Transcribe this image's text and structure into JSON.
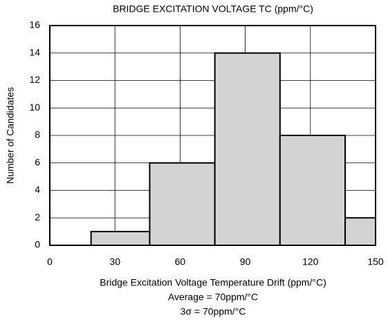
{
  "chart_data": {
    "type": "histogram",
    "title": "BRIDGE EXCITATION VOLTAGE TC (ppm/°C)",
    "x_label": "Bridge Excitation Voltage Temperature Drift (ppm/°C)",
    "y_label": "Number of Candidates",
    "annotations": [
      "Average = 70ppm/°C",
      "3σ = 70ppm/°C"
    ],
    "bins": [
      19,
      46,
      76,
      106,
      136,
      150
    ],
    "counts": [
      1,
      6,
      14,
      8,
      2
    ],
    "color": "#d3d3d3",
    "xlim": [
      0,
      150
    ],
    "xticks": [
      0,
      30,
      60,
      90,
      120,
      150
    ],
    "ylim": [
      0,
      16
    ],
    "yticks": [
      0,
      2,
      4,
      6,
      8,
      10,
      12,
      14,
      16
    ],
    "grid": true
  }
}
